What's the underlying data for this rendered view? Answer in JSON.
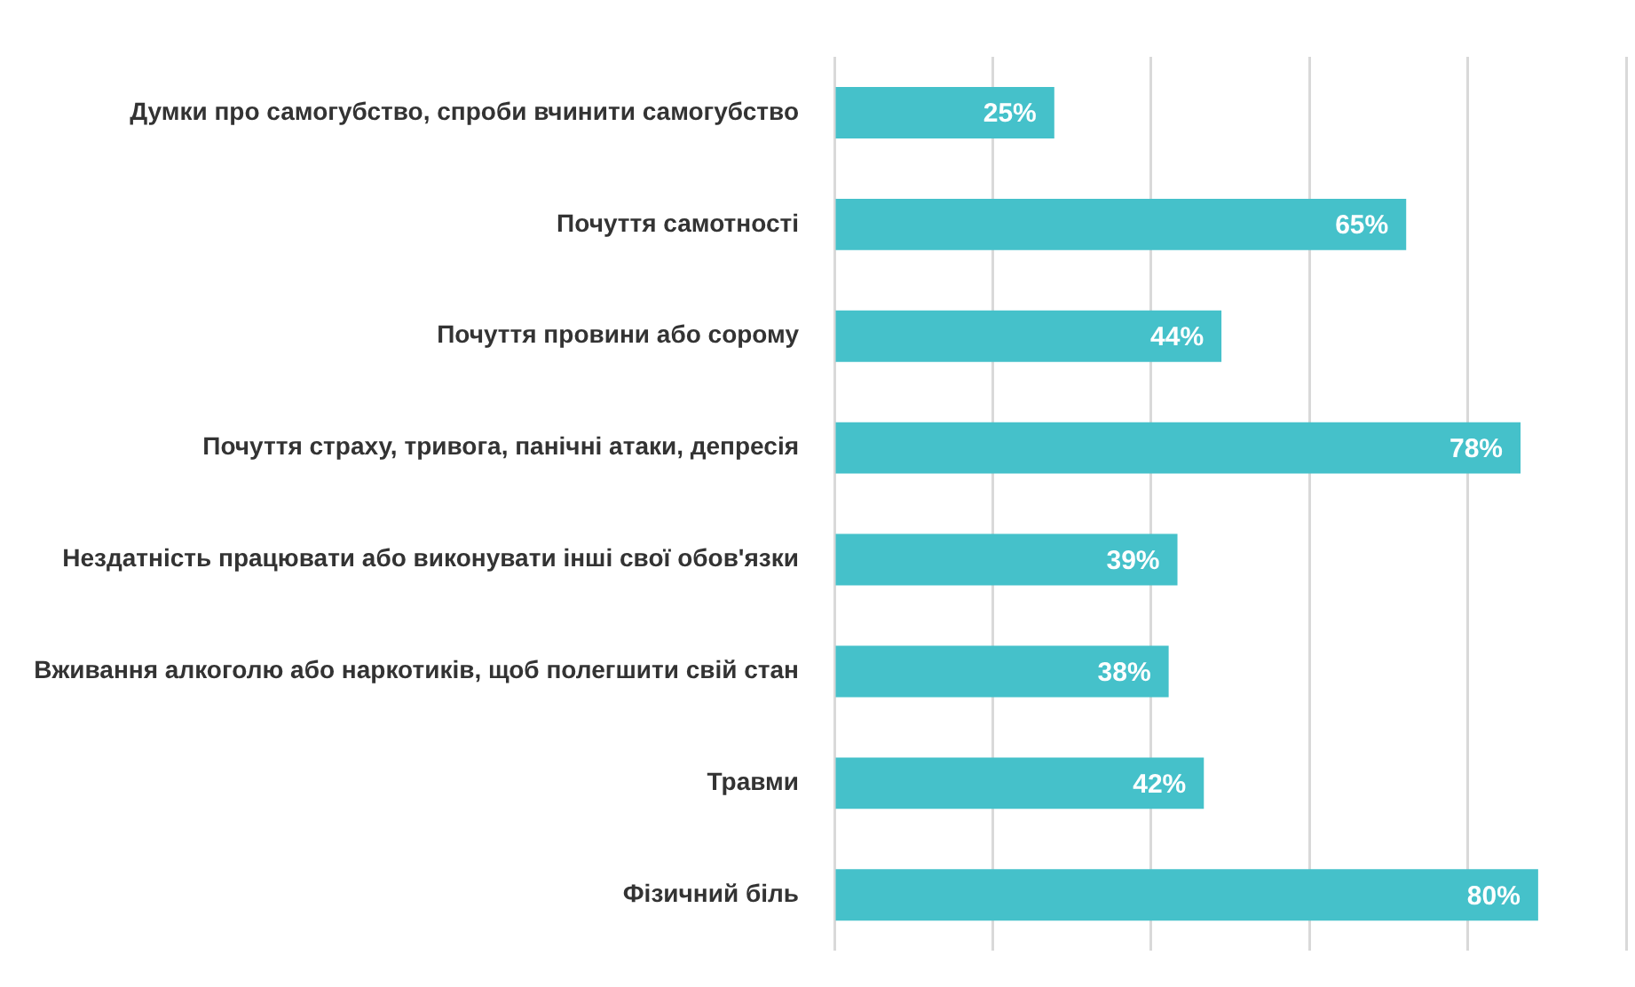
{
  "chart_data": {
    "type": "bar",
    "orientation": "horizontal",
    "categories": [
      "Думки про самогубство, спроби вчинити самогубство",
      "Почуття самотності",
      "Почуття провини або сорому",
      "Почуття страху, тривога, панічні атаки, депресія",
      "Нездатність працювати або виконувати інші свої обов'язки",
      "Вживання алкоголю або наркотиків, щоб полегшити свій стан",
      "Травми",
      "Фізичний біль"
    ],
    "values": [
      25,
      65,
      44,
      78,
      39,
      38,
      42,
      80
    ],
    "value_labels": [
      "25%",
      "65%",
      "44%",
      "78%",
      "39%",
      "38%",
      "42%",
      "80%"
    ],
    "color": "#45c1ca",
    "xlim": [
      0,
      90
    ],
    "xticks": [
      {
        "value": 0,
        "label": null
      },
      {
        "value": 18,
        "label": null
      },
      {
        "value": 36,
        "label": null
      },
      {
        "value": 54,
        "label": null
      },
      {
        "value": 72,
        "label": null
      },
      {
        "value": 90,
        "label": null
      }
    ],
    "grid": "x",
    "tick_labels": "y",
    "legend": false
  }
}
